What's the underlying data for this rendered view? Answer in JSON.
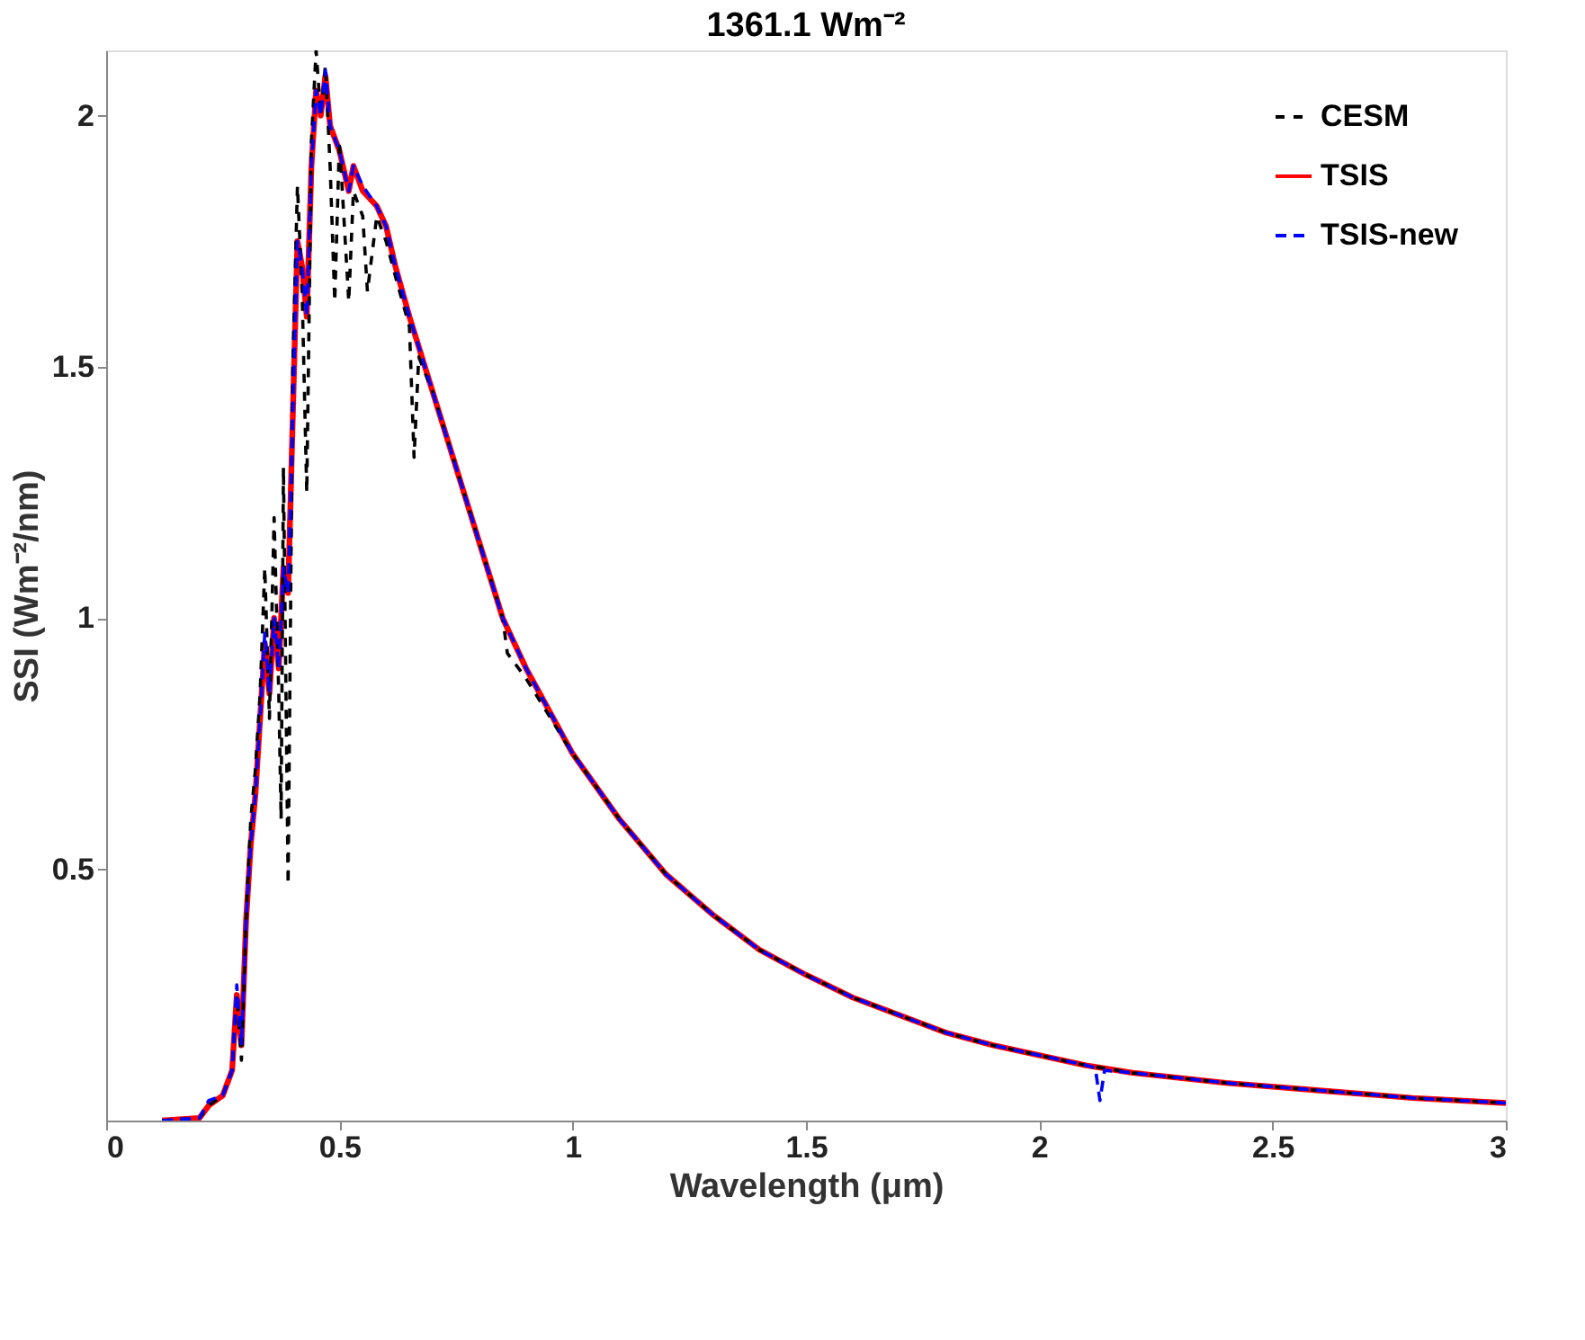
{
  "chart_data": {
    "type": "line",
    "title": "1361.1 Wm⁻²",
    "xlabel": "Wavelength (μm)",
    "ylabel": "SSI (Wm⁻²/nm)",
    "xlim": [
      0,
      3
    ],
    "ylim": [
      0,
      2.13
    ],
    "xticks": [
      0,
      0.5,
      1,
      1.5,
      2,
      2.5,
      3
    ],
    "yticks": [
      0.5,
      1,
      1.5,
      2
    ],
    "grid": false,
    "legend": "top right",
    "marker": "none",
    "series": [
      {
        "name": "CESM",
        "color": "#000000",
        "line_style": "dashed",
        "x": [
          0.12,
          0.2,
          0.22,
          0.25,
          0.27,
          0.28,
          0.29,
          0.3,
          0.31,
          0.32,
          0.33,
          0.34,
          0.35,
          0.36,
          0.37,
          0.375,
          0.38,
          0.39,
          0.4,
          0.41,
          0.42,
          0.43,
          0.44,
          0.45,
          0.46,
          0.47,
          0.48,
          0.49,
          0.5,
          0.52,
          0.53,
          0.55,
          0.56,
          0.58,
          0.6,
          0.62,
          0.65,
          0.66,
          0.67,
          0.7,
          0.75,
          0.8,
          0.85,
          0.86,
          0.9,
          1.0,
          1.1,
          1.2,
          1.3,
          1.4,
          1.5,
          1.6,
          1.7,
          1.8,
          1.9,
          2.0,
          2.1,
          2.2,
          2.4,
          2.6,
          2.8,
          3.0
        ],
        "values": [
          0.0,
          0.005,
          0.03,
          0.05,
          0.1,
          0.25,
          0.12,
          0.4,
          0.6,
          0.7,
          0.85,
          1.1,
          0.8,
          1.2,
          0.85,
          0.6,
          1.3,
          0.47,
          1.5,
          1.86,
          1.65,
          1.25,
          1.95,
          2.13,
          2.0,
          2.1,
          1.9,
          1.63,
          1.95,
          1.63,
          1.85,
          1.8,
          1.65,
          1.8,
          1.75,
          1.68,
          1.58,
          1.32,
          1.52,
          1.45,
          1.3,
          1.15,
          1.0,
          0.93,
          0.88,
          0.73,
          0.6,
          0.49,
          0.41,
          0.34,
          0.29,
          0.245,
          0.21,
          0.175,
          0.15,
          0.13,
          0.11,
          0.095,
          0.075,
          0.06,
          0.045,
          0.035
        ]
      },
      {
        "name": "TSIS",
        "color": "#ff0000",
        "line_style": "solid",
        "x": [
          0.12,
          0.2,
          0.22,
          0.25,
          0.27,
          0.28,
          0.29,
          0.3,
          0.31,
          0.32,
          0.33,
          0.34,
          0.35,
          0.36,
          0.37,
          0.38,
          0.39,
          0.4,
          0.41,
          0.42,
          0.43,
          0.44,
          0.45,
          0.46,
          0.47,
          0.48,
          0.5,
          0.52,
          0.53,
          0.55,
          0.58,
          0.6,
          0.62,
          0.65,
          0.7,
          0.75,
          0.8,
          0.85,
          0.9,
          1.0,
          1.1,
          1.2,
          1.3,
          1.4,
          1.5,
          1.6,
          1.7,
          1.8,
          1.9,
          2.0,
          2.1,
          2.2,
          2.4,
          2.6,
          2.8,
          3.0
        ],
        "values": [
          0.0,
          0.005,
          0.03,
          0.05,
          0.1,
          0.25,
          0.15,
          0.4,
          0.55,
          0.65,
          0.8,
          0.95,
          0.85,
          1.0,
          0.9,
          1.1,
          1.05,
          1.4,
          1.75,
          1.7,
          1.6,
          1.9,
          2.05,
          2.0,
          2.08,
          1.98,
          1.93,
          1.85,
          1.9,
          1.85,
          1.82,
          1.78,
          1.7,
          1.6,
          1.45,
          1.3,
          1.15,
          1.0,
          0.9,
          0.73,
          0.6,
          0.49,
          0.41,
          0.34,
          0.29,
          0.245,
          0.21,
          0.175,
          0.15,
          0.13,
          0.11,
          0.095,
          0.075,
          0.06,
          0.045,
          0.035
        ]
      },
      {
        "name": "TSIS-new",
        "color": "#0000ff",
        "line_style": "dashed",
        "x": [
          0.12,
          0.2,
          0.22,
          0.25,
          0.27,
          0.28,
          0.29,
          0.3,
          0.31,
          0.32,
          0.33,
          0.34,
          0.35,
          0.36,
          0.37,
          0.38,
          0.39,
          0.4,
          0.41,
          0.42,
          0.43,
          0.44,
          0.45,
          0.46,
          0.47,
          0.48,
          0.5,
          0.52,
          0.53,
          0.55,
          0.58,
          0.6,
          0.62,
          0.65,
          0.7,
          0.75,
          0.8,
          0.85,
          0.9,
          1.0,
          1.1,
          1.2,
          1.3,
          1.4,
          1.5,
          1.6,
          1.7,
          1.8,
          1.9,
          2.0,
          2.1,
          2.12,
          2.13,
          2.14,
          2.2,
          2.4,
          2.6,
          2.8,
          3.0
        ],
        "values": [
          0.0,
          0.005,
          0.04,
          0.05,
          0.1,
          0.27,
          0.15,
          0.4,
          0.55,
          0.65,
          0.8,
          0.97,
          0.85,
          1.0,
          0.9,
          1.1,
          1.05,
          1.4,
          1.75,
          1.7,
          1.6,
          1.9,
          2.05,
          2.0,
          2.09,
          1.98,
          1.93,
          1.85,
          1.9,
          1.86,
          1.82,
          1.78,
          1.7,
          1.6,
          1.45,
          1.3,
          1.15,
          1.0,
          0.9,
          0.73,
          0.6,
          0.49,
          0.41,
          0.34,
          0.29,
          0.245,
          0.21,
          0.175,
          0.15,
          0.13,
          0.11,
          0.105,
          0.04,
          0.1,
          0.095,
          0.075,
          0.06,
          0.045,
          0.035
        ]
      }
    ]
  }
}
